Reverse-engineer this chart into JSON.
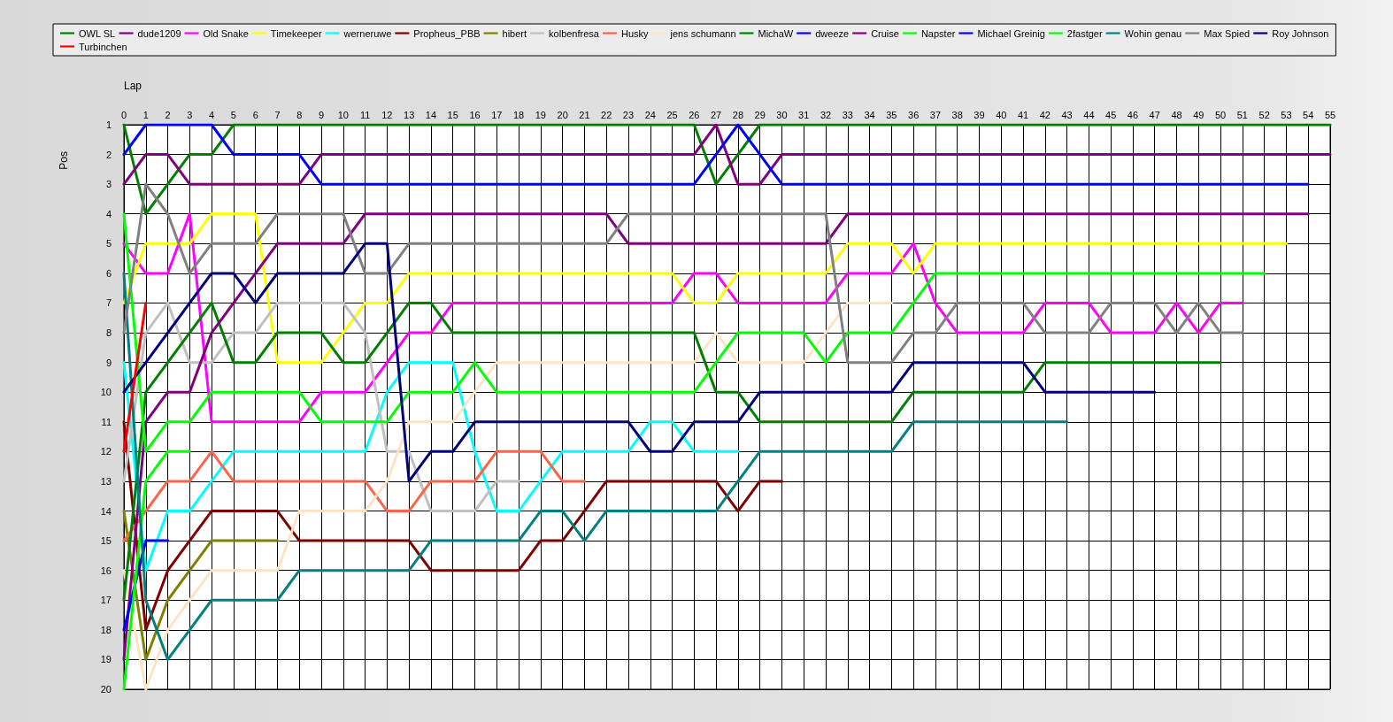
{
  "chart_data": {
    "type": "line",
    "xlabel": "Lap",
    "ylabel": "Pos",
    "x": [
      0,
      1,
      2,
      3,
      4,
      5,
      6,
      7,
      8,
      9,
      10,
      11,
      12,
      13,
      14,
      15,
      16,
      17,
      18,
      19,
      20,
      21,
      22,
      23,
      24,
      25,
      26,
      27,
      28,
      29,
      30,
      31,
      32,
      33,
      34,
      35,
      36,
      37,
      38,
      39,
      40,
      41,
      42,
      43,
      44,
      45,
      46,
      47,
      48,
      49,
      50,
      51,
      52,
      53,
      54,
      55
    ],
    "xlim": [
      0,
      55
    ],
    "xticks": [
      0,
      1,
      2,
      3,
      4,
      5,
      6,
      7,
      8,
      9,
      10,
      11,
      12,
      13,
      14,
      15,
      16,
      17,
      18,
      19,
      20,
      21,
      22,
      23,
      24,
      25,
      26,
      27,
      28,
      29,
      30,
      31,
      32,
      33,
      34,
      35,
      36,
      37,
      38,
      39,
      40,
      41,
      42,
      43,
      44,
      45,
      46,
      47,
      48,
      49,
      50,
      51,
      52,
      53,
      54,
      55
    ],
    "ylim": [
      20,
      1
    ],
    "yticks": [
      1,
      2,
      3,
      4,
      5,
      6,
      7,
      8,
      9,
      10,
      11,
      12,
      13,
      14,
      15,
      16,
      17,
      18,
      19,
      20
    ],
    "grid": true,
    "legend": "top",
    "marker": "none",
    "line_style": "solid",
    "series": [
      {
        "name": "OWL SL",
        "color": "#008000",
        "values": [
          1,
          4,
          3,
          2,
          2,
          1,
          1,
          1,
          1,
          1,
          1,
          1,
          1,
          1,
          1,
          1,
          1,
          1,
          1,
          1,
          1,
          1,
          1,
          1,
          1,
          1,
          1,
          3,
          2,
          1,
          1,
          1,
          1,
          1,
          1,
          1,
          1,
          1,
          1,
          1,
          1,
          1,
          1,
          1,
          1,
          1,
          1,
          1,
          1,
          1,
          1,
          1,
          1,
          1,
          1,
          1
        ]
      },
      {
        "name": "dude1209",
        "color": "#800080",
        "values": [
          3,
          2,
          2,
          3,
          3,
          3,
          3,
          3,
          3,
          2,
          2,
          2,
          2,
          2,
          2,
          2,
          2,
          2,
          2,
          2,
          2,
          2,
          2,
          2,
          2,
          2,
          2,
          1,
          3,
          3,
          2,
          2,
          2,
          2,
          2,
          2,
          2,
          2,
          2,
          2,
          2,
          2,
          2,
          2,
          2,
          2,
          2,
          2,
          2,
          2,
          2,
          2,
          2,
          2,
          2,
          2
        ]
      },
      {
        "name": "Old Snake",
        "color": "#ff00ff",
        "values": [
          5,
          6,
          6,
          4,
          11,
          11,
          11,
          11,
          11,
          10,
          10,
          10,
          9,
          8,
          8,
          7,
          7,
          7,
          7,
          7,
          7,
          7,
          7,
          7,
          7,
          7,
          6,
          6,
          7,
          7,
          7,
          7,
          7,
          6,
          6,
          6,
          5,
          7,
          8,
          8,
          8,
          8,
          7,
          7,
          7,
          8,
          8,
          8,
          7,
          8,
          7,
          7,
          null,
          null,
          null,
          null
        ]
      },
      {
        "name": "Timekeeper",
        "color": "#ffff00",
        "values": [
          7,
          5,
          5,
          5,
          4,
          4,
          4,
          9,
          9,
          9,
          8,
          7,
          7,
          6,
          6,
          6,
          6,
          6,
          6,
          6,
          6,
          6,
          6,
          6,
          6,
          6,
          7,
          7,
          6,
          6,
          6,
          6,
          6,
          5,
          5,
          5,
          6,
          5,
          5,
          5,
          5,
          5,
          5,
          5,
          5,
          5,
          5,
          5,
          5,
          5,
          5,
          5,
          5,
          5,
          null,
          null
        ]
      },
      {
        "name": "werneruwe",
        "color": "#00ffff",
        "values": [
          9,
          16,
          14,
          14,
          13,
          12,
          12,
          12,
          12,
          12,
          12,
          12,
          10,
          9,
          9,
          9,
          12,
          14,
          14,
          13,
          12,
          12,
          12,
          12,
          11,
          11,
          12,
          12,
          12,
          null,
          null,
          null,
          null,
          null,
          null,
          null,
          null,
          null,
          null,
          null,
          null,
          null,
          null,
          null,
          null,
          null,
          null,
          null,
          null,
          null,
          null,
          null,
          null,
          null,
          null,
          null
        ]
      },
      {
        "name": "Propheus_PBB",
        "color": "#800000",
        "values": [
          11,
          18,
          16,
          15,
          14,
          14,
          14,
          14,
          15,
          15,
          15,
          15,
          15,
          15,
          16,
          16,
          16,
          16,
          16,
          15,
          15,
          14,
          13,
          13,
          13,
          13,
          13,
          13,
          14,
          13,
          13,
          null,
          null,
          null,
          null,
          null,
          null,
          null,
          null,
          null,
          null,
          null,
          null,
          null,
          null,
          null,
          null,
          null,
          null,
          null,
          null,
          null,
          null,
          null,
          null,
          null
        ]
      },
      {
        "name": "hibert",
        "color": "#808000",
        "values": [
          14,
          19,
          17,
          16,
          15,
          15,
          15,
          15,
          null,
          null,
          null,
          null,
          null,
          null,
          null,
          null,
          null,
          null,
          null,
          null,
          null,
          null,
          null,
          null,
          null,
          null,
          null,
          null,
          null,
          null,
          null,
          null,
          null,
          null,
          null,
          null,
          null,
          null,
          null,
          null,
          null,
          null,
          null,
          null,
          null,
          null,
          null,
          null,
          null,
          null,
          null,
          null,
          null,
          null,
          null,
          null
        ]
      },
      {
        "name": "kolbenfresa",
        "color": "#c0c0c0",
        "values": [
          13,
          8,
          7,
          9,
          9,
          8,
          8,
          7,
          7,
          7,
          7,
          8,
          12,
          12,
          14,
          14,
          14,
          13,
          13,
          null,
          null,
          null,
          null,
          null,
          null,
          null,
          null,
          null,
          null,
          null,
          null,
          null,
          null,
          null,
          null,
          null,
          null,
          null,
          null,
          null,
          null,
          null,
          null,
          null,
          null,
          null,
          null,
          null,
          null,
          null,
          null,
          null,
          null,
          null,
          null,
          null
        ]
      },
      {
        "name": "Husky",
        "color": "#ff6347",
        "values": [
          15,
          14,
          13,
          13,
          12,
          13,
          13,
          13,
          13,
          13,
          13,
          13,
          14,
          14,
          13,
          13,
          13,
          12,
          12,
          12,
          13,
          13,
          null,
          null,
          null,
          null,
          null,
          null,
          null,
          null,
          null,
          null,
          null,
          null,
          null,
          null,
          null,
          null,
          null,
          null,
          null,
          null,
          null,
          null,
          null,
          null,
          null,
          null,
          null,
          null,
          null,
          null,
          null,
          null,
          null,
          null
        ]
      },
      {
        "name": "jens schumann",
        "color": "#ffe4c4",
        "values": [
          16,
          20,
          18,
          17,
          16,
          16,
          16,
          16,
          14,
          14,
          14,
          14,
          13,
          11,
          11,
          11,
          10,
          9,
          9,
          9,
          9,
          9,
          9,
          9,
          9,
          9,
          9,
          8,
          9,
          9,
          9,
          9,
          8,
          7,
          7,
          7,
          null,
          null,
          null,
          null,
          null,
          null,
          null,
          null,
          null,
          null,
          null,
          null,
          null,
          null,
          null,
          null,
          null,
          null,
          null,
          null
        ]
      },
      {
        "name": "MichaW",
        "color": "#008000",
        "values": [
          17,
          10,
          9,
          8,
          7,
          9,
          9,
          8,
          8,
          8,
          9,
          9,
          8,
          7,
          7,
          8,
          8,
          8,
          8,
          8,
          8,
          8,
          8,
          8,
          8,
          8,
          8,
          10,
          10,
          11,
          11,
          11,
          11,
          11,
          11,
          11,
          10,
          10,
          10,
          10,
          10,
          10,
          9,
          9,
          9,
          9,
          9,
          9,
          9,
          9,
          9,
          null,
          null,
          null,
          null,
          null
        ]
      },
      {
        "name": "dweeze",
        "color": "#0000ff",
        "values": [
          2,
          1,
          1,
          1,
          1,
          2,
          2,
          2,
          2,
          3,
          3,
          3,
          3,
          3,
          3,
          3,
          3,
          3,
          3,
          3,
          3,
          3,
          3,
          3,
          3,
          3,
          3,
          2,
          1,
          2,
          3,
          3,
          3,
          3,
          3,
          3,
          3,
          3,
          3,
          3,
          3,
          3,
          3,
          3,
          3,
          3,
          3,
          3,
          3,
          3,
          3,
          3,
          3,
          3,
          3,
          null
        ]
      },
      {
        "name": "Cruise",
        "color": "#800080",
        "values": [
          19,
          11,
          10,
          10,
          8,
          7,
          6,
          5,
          5,
          5,
          5,
          4,
          4,
          4,
          4,
          4,
          4,
          4,
          4,
          4,
          4,
          4,
          4,
          5,
          5,
          5,
          5,
          5,
          5,
          5,
          5,
          5,
          5,
          4,
          4,
          4,
          4,
          4,
          4,
          4,
          4,
          4,
          4,
          4,
          4,
          4,
          4,
          4,
          4,
          4,
          4,
          4,
          4,
          4,
          4,
          null
        ]
      },
      {
        "name": "Napster",
        "color": "#00ff00",
        "values": [
          4,
          12,
          11,
          11,
          10,
          10,
          10,
          10,
          10,
          11,
          11,
          11,
          11,
          10,
          10,
          10,
          9,
          10,
          10,
          10,
          10,
          10,
          10,
          10,
          10,
          10,
          10,
          9,
          8,
          8,
          8,
          8,
          9,
          8,
          8,
          8,
          7,
          6,
          6,
          6,
          6,
          6,
          6,
          6,
          6,
          6,
          6,
          6,
          6,
          6,
          6,
          6,
          6,
          null,
          null,
          null
        ]
      },
      {
        "name": "Michael Greinig",
        "color": "#0000ff",
        "values": [
          18,
          15,
          15,
          null,
          null,
          null,
          null,
          null,
          null,
          null,
          null,
          null,
          null,
          null,
          null,
          null,
          null,
          null,
          null,
          null,
          null,
          null,
          null,
          null,
          null,
          null,
          null,
          null,
          null,
          null,
          null,
          null,
          null,
          null,
          null,
          null,
          null,
          null,
          null,
          null,
          null,
          null,
          null,
          null,
          null,
          null,
          null,
          null,
          null,
          null,
          null,
          null,
          null,
          null,
          null,
          null
        ]
      },
      {
        "name": "2fastger",
        "color": "#00ff00",
        "values": [
          20,
          13,
          12,
          12,
          null,
          null,
          null,
          null,
          null,
          null,
          null,
          null,
          null,
          null,
          null,
          null,
          null,
          null,
          null,
          null,
          null,
          null,
          null,
          null,
          null,
          null,
          null,
          null,
          null,
          null,
          null,
          null,
          null,
          null,
          null,
          null,
          null,
          null,
          null,
          null,
          null,
          null,
          null,
          null,
          null,
          null,
          null,
          null,
          null,
          null,
          null,
          null,
          null,
          null,
          null,
          null
        ]
      },
      {
        "name": "Wohin genau",
        "color": "#008080",
        "values": [
          6,
          17,
          19,
          18,
          17,
          17,
          17,
          17,
          16,
          16,
          16,
          16,
          16,
          16,
          15,
          15,
          15,
          15,
          15,
          14,
          14,
          15,
          14,
          14,
          14,
          14,
          14,
          14,
          13,
          12,
          12,
          12,
          12,
          12,
          12,
          12,
          11,
          11,
          11,
          11,
          11,
          11,
          11,
          11,
          null,
          null,
          null,
          null,
          null,
          null,
          null,
          null,
          null,
          null,
          null,
          null
        ]
      },
      {
        "name": "Max Spied",
        "color": "#808080",
        "values": [
          8,
          3,
          4,
          6,
          5,
          5,
          5,
          4,
          4,
          4,
          4,
          6,
          6,
          5,
          5,
          5,
          5,
          5,
          5,
          5,
          5,
          5,
          5,
          4,
          4,
          4,
          4,
          4,
          4,
          4,
          4,
          4,
          4,
          9,
          9,
          9,
          8,
          8,
          7,
          7,
          7,
          7,
          8,
          8,
          8,
          7,
          7,
          7,
          8,
          7,
          8,
          8,
          null,
          null,
          null,
          null
        ]
      },
      {
        "name": "Roy Johnson",
        "color": "#000080",
        "values": [
          10,
          9,
          8,
          7,
          6,
          6,
          7,
          6,
          6,
          6,
          6,
          5,
          5,
          13,
          12,
          12,
          11,
          11,
          11,
          11,
          11,
          11,
          11,
          11,
          12,
          12,
          11,
          11,
          11,
          10,
          10,
          10,
          10,
          10,
          10,
          10,
          9,
          9,
          9,
          9,
          9,
          9,
          10,
          10,
          10,
          10,
          10,
          10,
          null,
          null,
          null,
          null,
          null,
          null,
          null,
          null
        ]
      },
      {
        "name": "Turbinchen",
        "color": "#ff0000",
        "values": [
          12,
          7,
          null,
          null,
          null,
          null,
          null,
          null,
          null,
          null,
          null,
          null,
          null,
          null,
          null,
          null,
          null,
          null,
          null,
          null,
          null,
          null,
          null,
          null,
          null,
          null,
          null,
          null,
          null,
          null,
          null,
          null,
          null,
          null,
          null,
          null,
          null,
          null,
          null,
          null,
          null,
          null,
          null,
          null,
          null,
          null,
          null,
          null,
          null,
          null,
          null,
          null,
          null,
          null,
          null,
          null
        ]
      }
    ]
  }
}
